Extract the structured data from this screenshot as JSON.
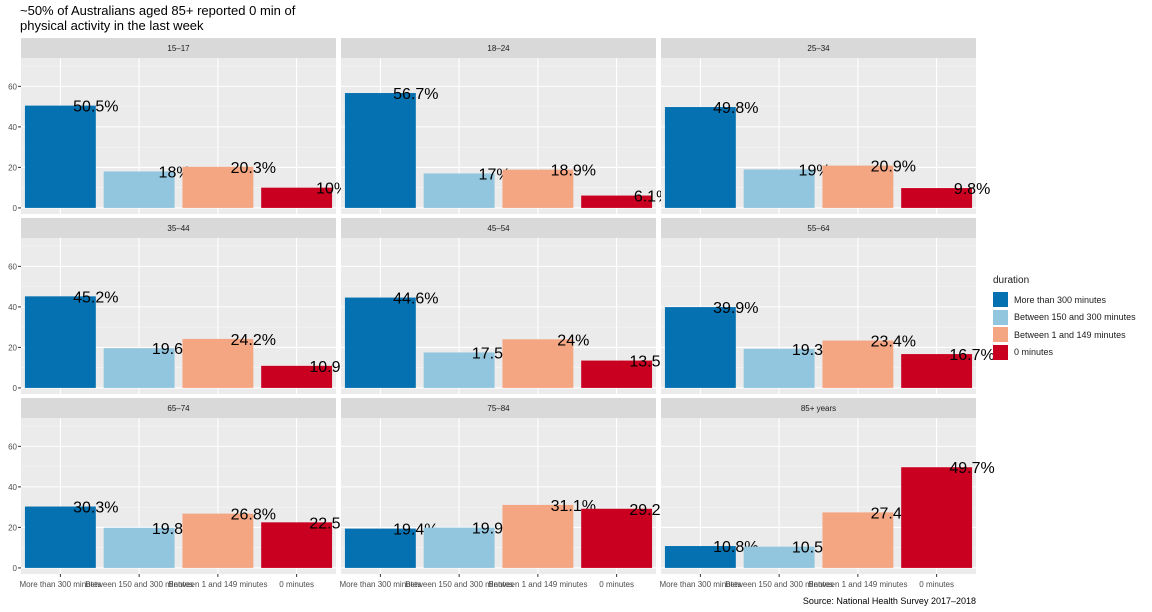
{
  "chart_data": {
    "type": "bar",
    "title": "~50% of Australians aged 85+ reported 0 min of\nphysical activity in the last week",
    "caption": "Source: National Health Survey 2017–2018",
    "legend_title": "duration",
    "legend_position": "right",
    "grid": true,
    "xlabel": "",
    "ylabel": "",
    "ylim": [
      -3,
      74
    ],
    "yticks": [
      0,
      20,
      40,
      60
    ],
    "categories": [
      "More than 300 minutes",
      "Between 150 and 300 minutes",
      "Between 1 and 149 minutes",
      "0 minutes"
    ],
    "colors": [
      "#0571b0",
      "#92c5de",
      "#f4a582",
      "#ca0020"
    ],
    "facets": [
      {
        "label": "15–17",
        "values": [
          50.5,
          18,
          20.3,
          10
        ],
        "labels": [
          "50.5%",
          "18%",
          "20.3%",
          "10%"
        ]
      },
      {
        "label": "18–24",
        "values": [
          56.7,
          17,
          18.9,
          6.1
        ],
        "labels": [
          "56.7%",
          "17%",
          "18.9%",
          "6.1%"
        ]
      },
      {
        "label": "25–34",
        "values": [
          49.8,
          19,
          20.9,
          9.8
        ],
        "labels": [
          "49.8%",
          "19%",
          "20.9%",
          "9.8%"
        ]
      },
      {
        "label": "35–44",
        "values": [
          45.2,
          19.6,
          24.2,
          10.9
        ],
        "labels": [
          "45.2%",
          "19.6%",
          "24.2%",
          "10.9%"
        ]
      },
      {
        "label": "45–54",
        "values": [
          44.6,
          17.5,
          24,
          13.5
        ],
        "labels": [
          "44.6%",
          "17.5%",
          "24%",
          "13.5%"
        ]
      },
      {
        "label": "55–64",
        "values": [
          39.9,
          19.3,
          23.4,
          16.7
        ],
        "labels": [
          "39.9%",
          "19.3%",
          "23.4%",
          "16.7%"
        ]
      },
      {
        "label": "65–74",
        "values": [
          30.3,
          19.8,
          26.8,
          22.5
        ],
        "labels": [
          "30.3%",
          "19.8%",
          "26.8%",
          "22.5%"
        ]
      },
      {
        "label": "75–84",
        "values": [
          19.4,
          19.9,
          31.1,
          29.2
        ],
        "labels": [
          "19.4%",
          "19.9%",
          "31.1%",
          "29.2%"
        ]
      },
      {
        "label": "85+ years",
        "values": [
          10.8,
          10.5,
          27.4,
          49.7
        ],
        "labels": [
          "10.8%",
          "10.5%",
          "27.4%",
          "49.7%"
        ]
      }
    ]
  }
}
